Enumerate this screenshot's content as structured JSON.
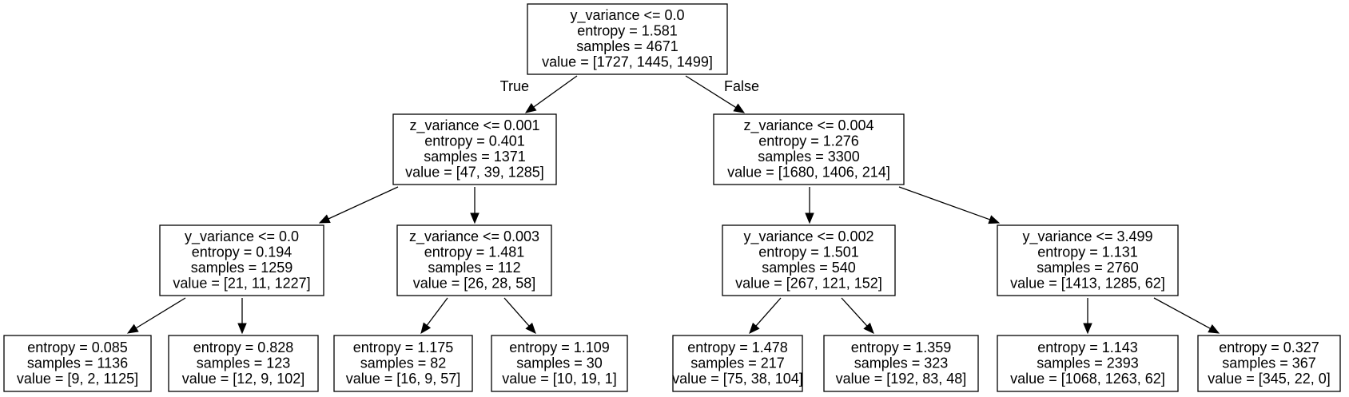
{
  "tree": {
    "nodes": [
      {
        "id": "n0",
        "lines": [
          "y_variance <= 0.0",
          "entropy = 1.581",
          "samples = 4671",
          "value = [1727, 1445, 1499]"
        ]
      },
      {
        "id": "n1",
        "lines": [
          "z_variance <= 0.001",
          "entropy = 0.401",
          "samples = 1371",
          "value = [47, 39, 1285]"
        ]
      },
      {
        "id": "n2",
        "lines": [
          "z_variance <= 0.004",
          "entropy = 1.276",
          "samples = 3300",
          "value = [1680, 1406, 214]"
        ]
      },
      {
        "id": "n3",
        "lines": [
          "y_variance <= 0.0",
          "entropy = 0.194",
          "samples = 1259",
          "value = [21, 11, 1227]"
        ]
      },
      {
        "id": "n4",
        "lines": [
          "z_variance <= 0.003",
          "entropy = 1.481",
          "samples = 112",
          "value = [26, 28, 58]"
        ]
      },
      {
        "id": "n5",
        "lines": [
          "y_variance <= 0.002",
          "entropy = 1.501",
          "samples = 540",
          "value = [267, 121, 152]"
        ]
      },
      {
        "id": "n6",
        "lines": [
          "y_variance <= 3.499",
          "entropy = 1.131",
          "samples = 2760",
          "value = [1413, 1285, 62]"
        ]
      },
      {
        "id": "n7",
        "lines": [
          "entropy = 0.085",
          "samples = 1136",
          "value = [9, 2, 1125]"
        ]
      },
      {
        "id": "n8",
        "lines": [
          "entropy = 0.828",
          "samples = 123",
          "value = [12, 9, 102]"
        ]
      },
      {
        "id": "n9",
        "lines": [
          "entropy = 1.175",
          "samples = 82",
          "value = [16, 9, 57]"
        ]
      },
      {
        "id": "n10",
        "lines": [
          "entropy = 1.109",
          "samples = 30",
          "value = [10, 19, 1]"
        ]
      },
      {
        "id": "n11",
        "lines": [
          "entropy = 1.478",
          "samples = 217",
          "value = [75, 38, 104]"
        ]
      },
      {
        "id": "n12",
        "lines": [
          "entropy = 1.359",
          "samples = 323",
          "value = [192, 83, 48]"
        ]
      },
      {
        "id": "n13",
        "lines": [
          "entropy = 1.143",
          "samples = 2393",
          "value = [1068, 1263, 62]"
        ]
      },
      {
        "id": "n14",
        "lines": [
          "entropy = 0.327",
          "samples = 367",
          "value = [345, 22, 0]"
        ]
      }
    ],
    "edges": [
      {
        "from": "n0",
        "to": "n1",
        "label": "True"
      },
      {
        "from": "n0",
        "to": "n2",
        "label": "False"
      },
      {
        "from": "n1",
        "to": "n3",
        "label": ""
      },
      {
        "from": "n1",
        "to": "n4",
        "label": ""
      },
      {
        "from": "n2",
        "to": "n5",
        "label": ""
      },
      {
        "from": "n2",
        "to": "n6",
        "label": ""
      },
      {
        "from": "n3",
        "to": "n7",
        "label": ""
      },
      {
        "from": "n3",
        "to": "n8",
        "label": ""
      },
      {
        "from": "n4",
        "to": "n9",
        "label": ""
      },
      {
        "from": "n4",
        "to": "n10",
        "label": ""
      },
      {
        "from": "n5",
        "to": "n11",
        "label": ""
      },
      {
        "from": "n5",
        "to": "n12",
        "label": ""
      },
      {
        "from": "n6",
        "to": "n13",
        "label": ""
      },
      {
        "from": "n6",
        "to": "n14",
        "label": ""
      }
    ]
  }
}
